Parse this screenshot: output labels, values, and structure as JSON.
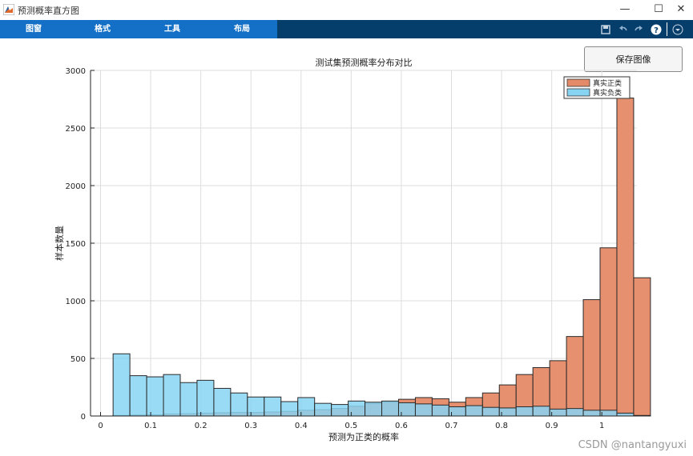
{
  "window": {
    "title": "预测概率直方图"
  },
  "menu": {
    "items": [
      "图窗",
      "格式",
      "工具",
      "布局"
    ]
  },
  "toolbar": {
    "icons": [
      "save-icon",
      "undo-icon",
      "redo-icon",
      "help-icon",
      "dropdown-icon"
    ]
  },
  "button": {
    "save_label": "保存图像"
  },
  "watermark": "CSDN @nantangyuxi",
  "colors": {
    "positive": "#e58a68",
    "negative": "#87d3f2",
    "overlap": "#6a9eaa",
    "menu_dark": "#063e6b",
    "menu_tab": "#1470c6"
  },
  "chart_data": {
    "type": "bar",
    "title": "测试集预测概率分布对比",
    "xlabel": "预测为正类的概率",
    "ylabel": "样本数量",
    "xlim": [
      -0.02,
      1.07
    ],
    "ylim": [
      0,
      3000
    ],
    "xticks": [
      0,
      0.1,
      0.2,
      0.3,
      0.4,
      0.5,
      0.6,
      0.7,
      0.8,
      0.9,
      1
    ],
    "xtick_labels": [
      "0",
      "0.1",
      "0.2",
      "0.3",
      "0.4",
      "0.5",
      "0.6",
      "0.7",
      "0.8",
      "0.9",
      "1"
    ],
    "yticks": [
      0,
      500,
      1000,
      1500,
      2000,
      2500,
      3000
    ],
    "ytick_labels": [
      "0",
      "500",
      "1000",
      "1500",
      "2000",
      "2500",
      "3000"
    ],
    "grid": true,
    "legend": {
      "position": "top-right",
      "entries": [
        "真实正类",
        "真实负类"
      ]
    },
    "series": [
      {
        "name": "真实正类",
        "bin_start": 0.025,
        "bin_width": 0.0335,
        "values": [
          5,
          8,
          10,
          18,
          20,
          25,
          28,
          30,
          30,
          35,
          40,
          50,
          55,
          65,
          85,
          110,
          120,
          145,
          160,
          150,
          120,
          160,
          200,
          270,
          360,
          420,
          480,
          690,
          1010,
          1460,
          2760,
          1200
        ]
      },
      {
        "name": "真实负类",
        "bin_start": 0.025,
        "bin_width": 0.0335,
        "values": [
          540,
          350,
          340,
          360,
          290,
          310,
          240,
          200,
          165,
          165,
          125,
          160,
          110,
          100,
          130,
          120,
          130,
          115,
          105,
          95,
          80,
          90,
          75,
          70,
          80,
          85,
          60,
          65,
          50,
          50,
          25,
          5
        ]
      }
    ]
  }
}
